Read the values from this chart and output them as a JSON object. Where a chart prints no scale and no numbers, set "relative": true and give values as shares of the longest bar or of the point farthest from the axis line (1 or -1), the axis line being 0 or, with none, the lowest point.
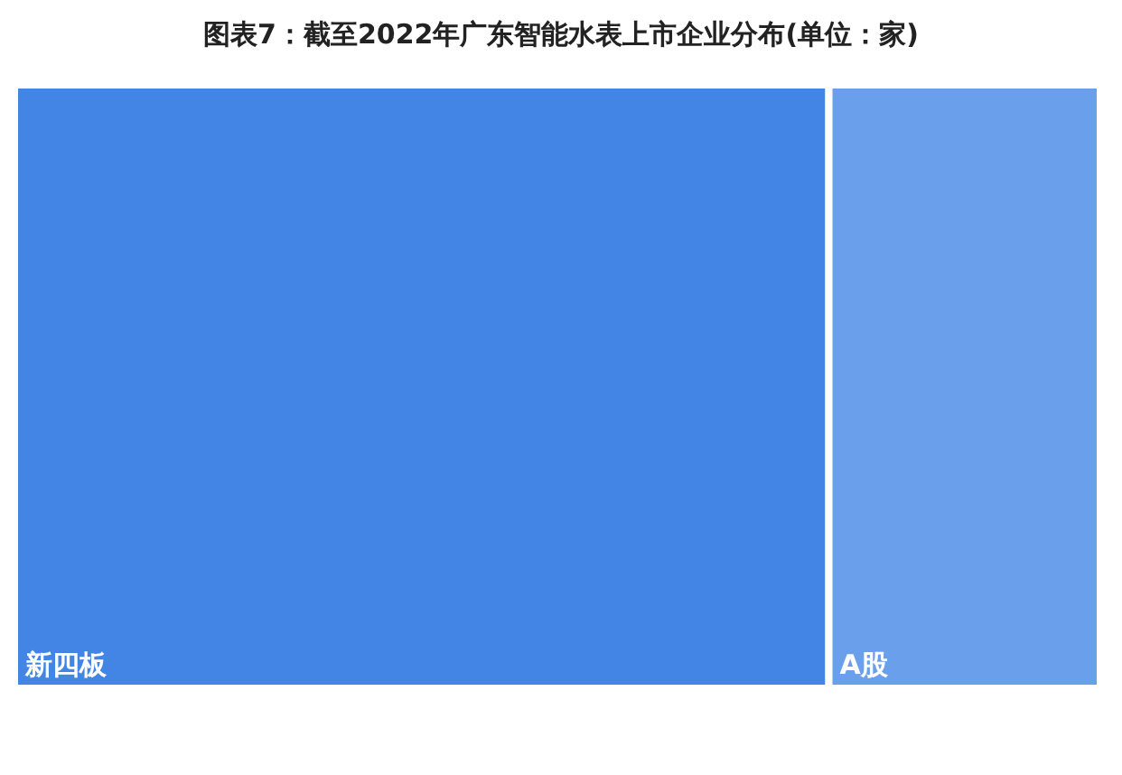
{
  "chart_data": {
    "type": "bar",
    "title": "图表7：截至2022年广东智能水表上市企业分布(单位：家)",
    "orientation": "horizontal",
    "stacked": true,
    "relative": true,
    "categories": [
      null
    ],
    "series": [
      {
        "name": "新四板",
        "color": "#4285e4",
        "values": [
          0.75
        ]
      },
      {
        "name": "A股",
        "color": "#6a9feb",
        "values": [
          0.25
        ]
      }
    ]
  }
}
